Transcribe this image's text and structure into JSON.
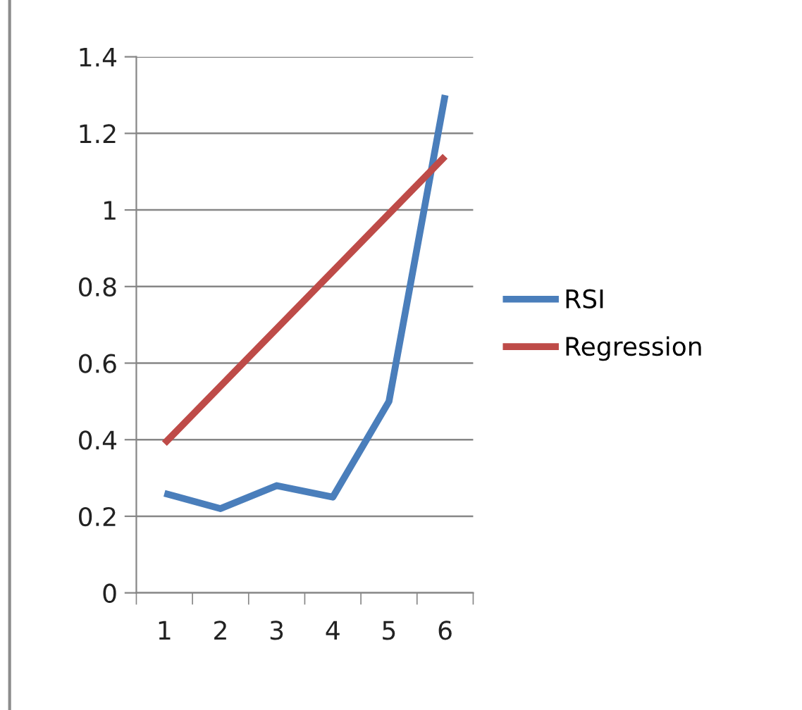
{
  "chart_data": {
    "type": "line",
    "categories": [
      "1",
      "2",
      "3",
      "4",
      "5",
      "6"
    ],
    "series": [
      {
        "name": "RSI",
        "color": "#4a7ebb",
        "values": [
          0.26,
          0.22,
          0.28,
          0.25,
          0.5,
          1.3
        ]
      },
      {
        "name": "Regression",
        "color": "#be4b48",
        "values": [
          0.39,
          0.54,
          0.69,
          0.84,
          0.99,
          1.14
        ]
      }
    ],
    "ylim": [
      0,
      1.4
    ],
    "yticks": [
      0,
      0.2,
      0.4,
      0.6,
      0.8,
      1,
      1.2,
      1.4
    ],
    "grid": "y",
    "legend": "right",
    "marker": "none",
    "line_style": "solid"
  }
}
